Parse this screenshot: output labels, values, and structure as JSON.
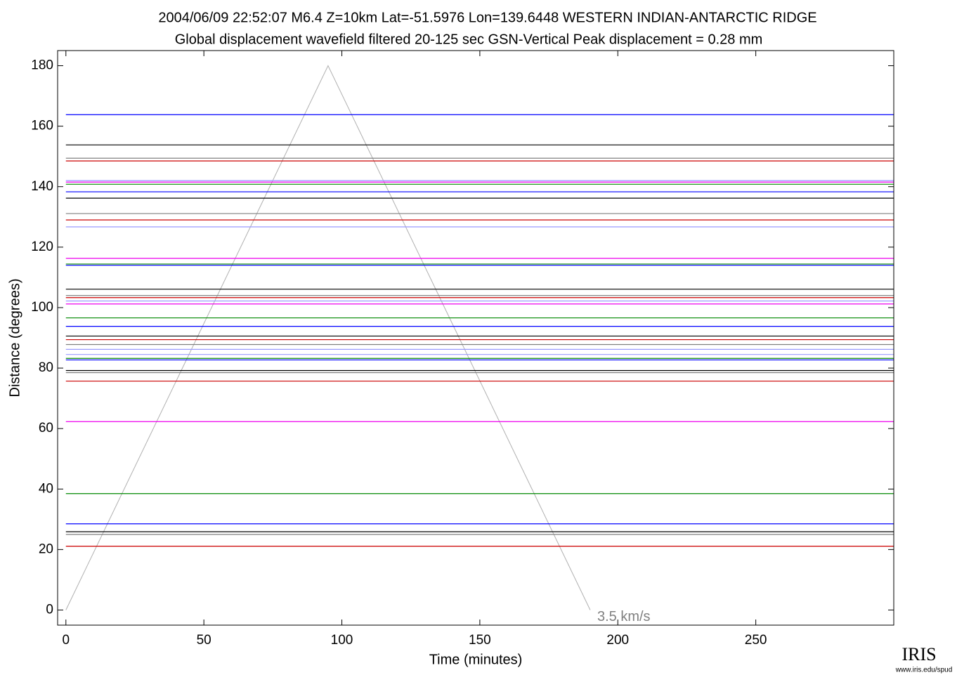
{
  "chart_data": {
    "type": "record_section",
    "title": "2004/06/09  22:52:07  M6.4  Z=10km  Lat=-51.5976 Lon=139.6448  WESTERN INDIAN-ANTARCTIC RIDGE",
    "subtitle": "Global displacement wavefield     filtered 20-125 sec     GSN-Vertical     Peak displacement = 0.28 mm",
    "xlabel": "Time (minutes)",
    "ylabel": "Distance (degrees)",
    "xlim": [
      -3,
      300
    ],
    "ylim": [
      -5,
      185
    ],
    "xticks": [
      0,
      50,
      100,
      150,
      200,
      250
    ],
    "yticks": [
      0,
      20,
      40,
      60,
      80,
      100,
      120,
      140,
      160,
      180
    ],
    "velocity_line": {
      "label": "3.5 km/s",
      "color": "#b0b0b0",
      "x": [
        0,
        95,
        190
      ],
      "y": [
        0,
        180,
        0
      ]
    },
    "traces": [
      {
        "color": "#0000ff",
        "distance": 163.8
      },
      {
        "color": "#000000",
        "distance": 153.8
      },
      {
        "color": "#808080",
        "distance": 149.4
      },
      {
        "color": "#cc0000",
        "distance": 148.5
      },
      {
        "color": "#9999ff",
        "distance": 142
      },
      {
        "color": "#ee00ee",
        "distance": 141.5
      },
      {
        "color": "#008800",
        "distance": 140.8
      },
      {
        "color": "#0000ff",
        "distance": 138.3
      },
      {
        "color": "#000000",
        "distance": 136.2
      },
      {
        "color": "#808080",
        "distance": 131.1
      },
      {
        "color": "#cc0000",
        "distance": 129
      },
      {
        "color": "#9999ff",
        "distance": 126.7
      },
      {
        "color": "#ee00ee",
        "distance": 116.3
      },
      {
        "color": "#008800",
        "distance": 114.4
      },
      {
        "color": "#0000ff",
        "distance": 114
      },
      {
        "color": "#000000",
        "distance": 106.1
      },
      {
        "color": "#808080",
        "distance": 104
      },
      {
        "color": "#cc0000",
        "distance": 103.3
      },
      {
        "color": "#9999ff",
        "distance": 102.2
      },
      {
        "color": "#ee00ee",
        "distance": 101.2
      },
      {
        "color": "#008800",
        "distance": 96.6
      },
      {
        "color": "#0000ff",
        "distance": 93.8
      },
      {
        "color": "#000000",
        "distance": 90.6
      },
      {
        "color": "#cc0000",
        "distance": 89.4
      },
      {
        "color": "#808080",
        "distance": 87.8
      },
      {
        "color": "#9999ff",
        "distance": 86.2
      },
      {
        "color": "#9999ff",
        "distance": 84.5
      },
      {
        "color": "#008800",
        "distance": 83.2
      },
      {
        "color": "#0000ff",
        "distance": 82.7
      },
      {
        "color": "#000000",
        "distance": 79.2
      },
      {
        "color": "#808080",
        "distance": 78.5
      },
      {
        "color": "#cc0000",
        "distance": 75.7
      },
      {
        "color": "#ee00ee",
        "distance": 62.3
      },
      {
        "color": "#008800",
        "distance": 38.5
      },
      {
        "color": "#0000ff",
        "distance": 28.5
      },
      {
        "color": "#000000",
        "distance": 25.9
      },
      {
        "color": "#808080",
        "distance": 25
      },
      {
        "color": "#cc0000",
        "distance": 21.1
      }
    ]
  },
  "logo": {
    "text": "IRIS",
    "url": "www.iris.edu/spud"
  }
}
